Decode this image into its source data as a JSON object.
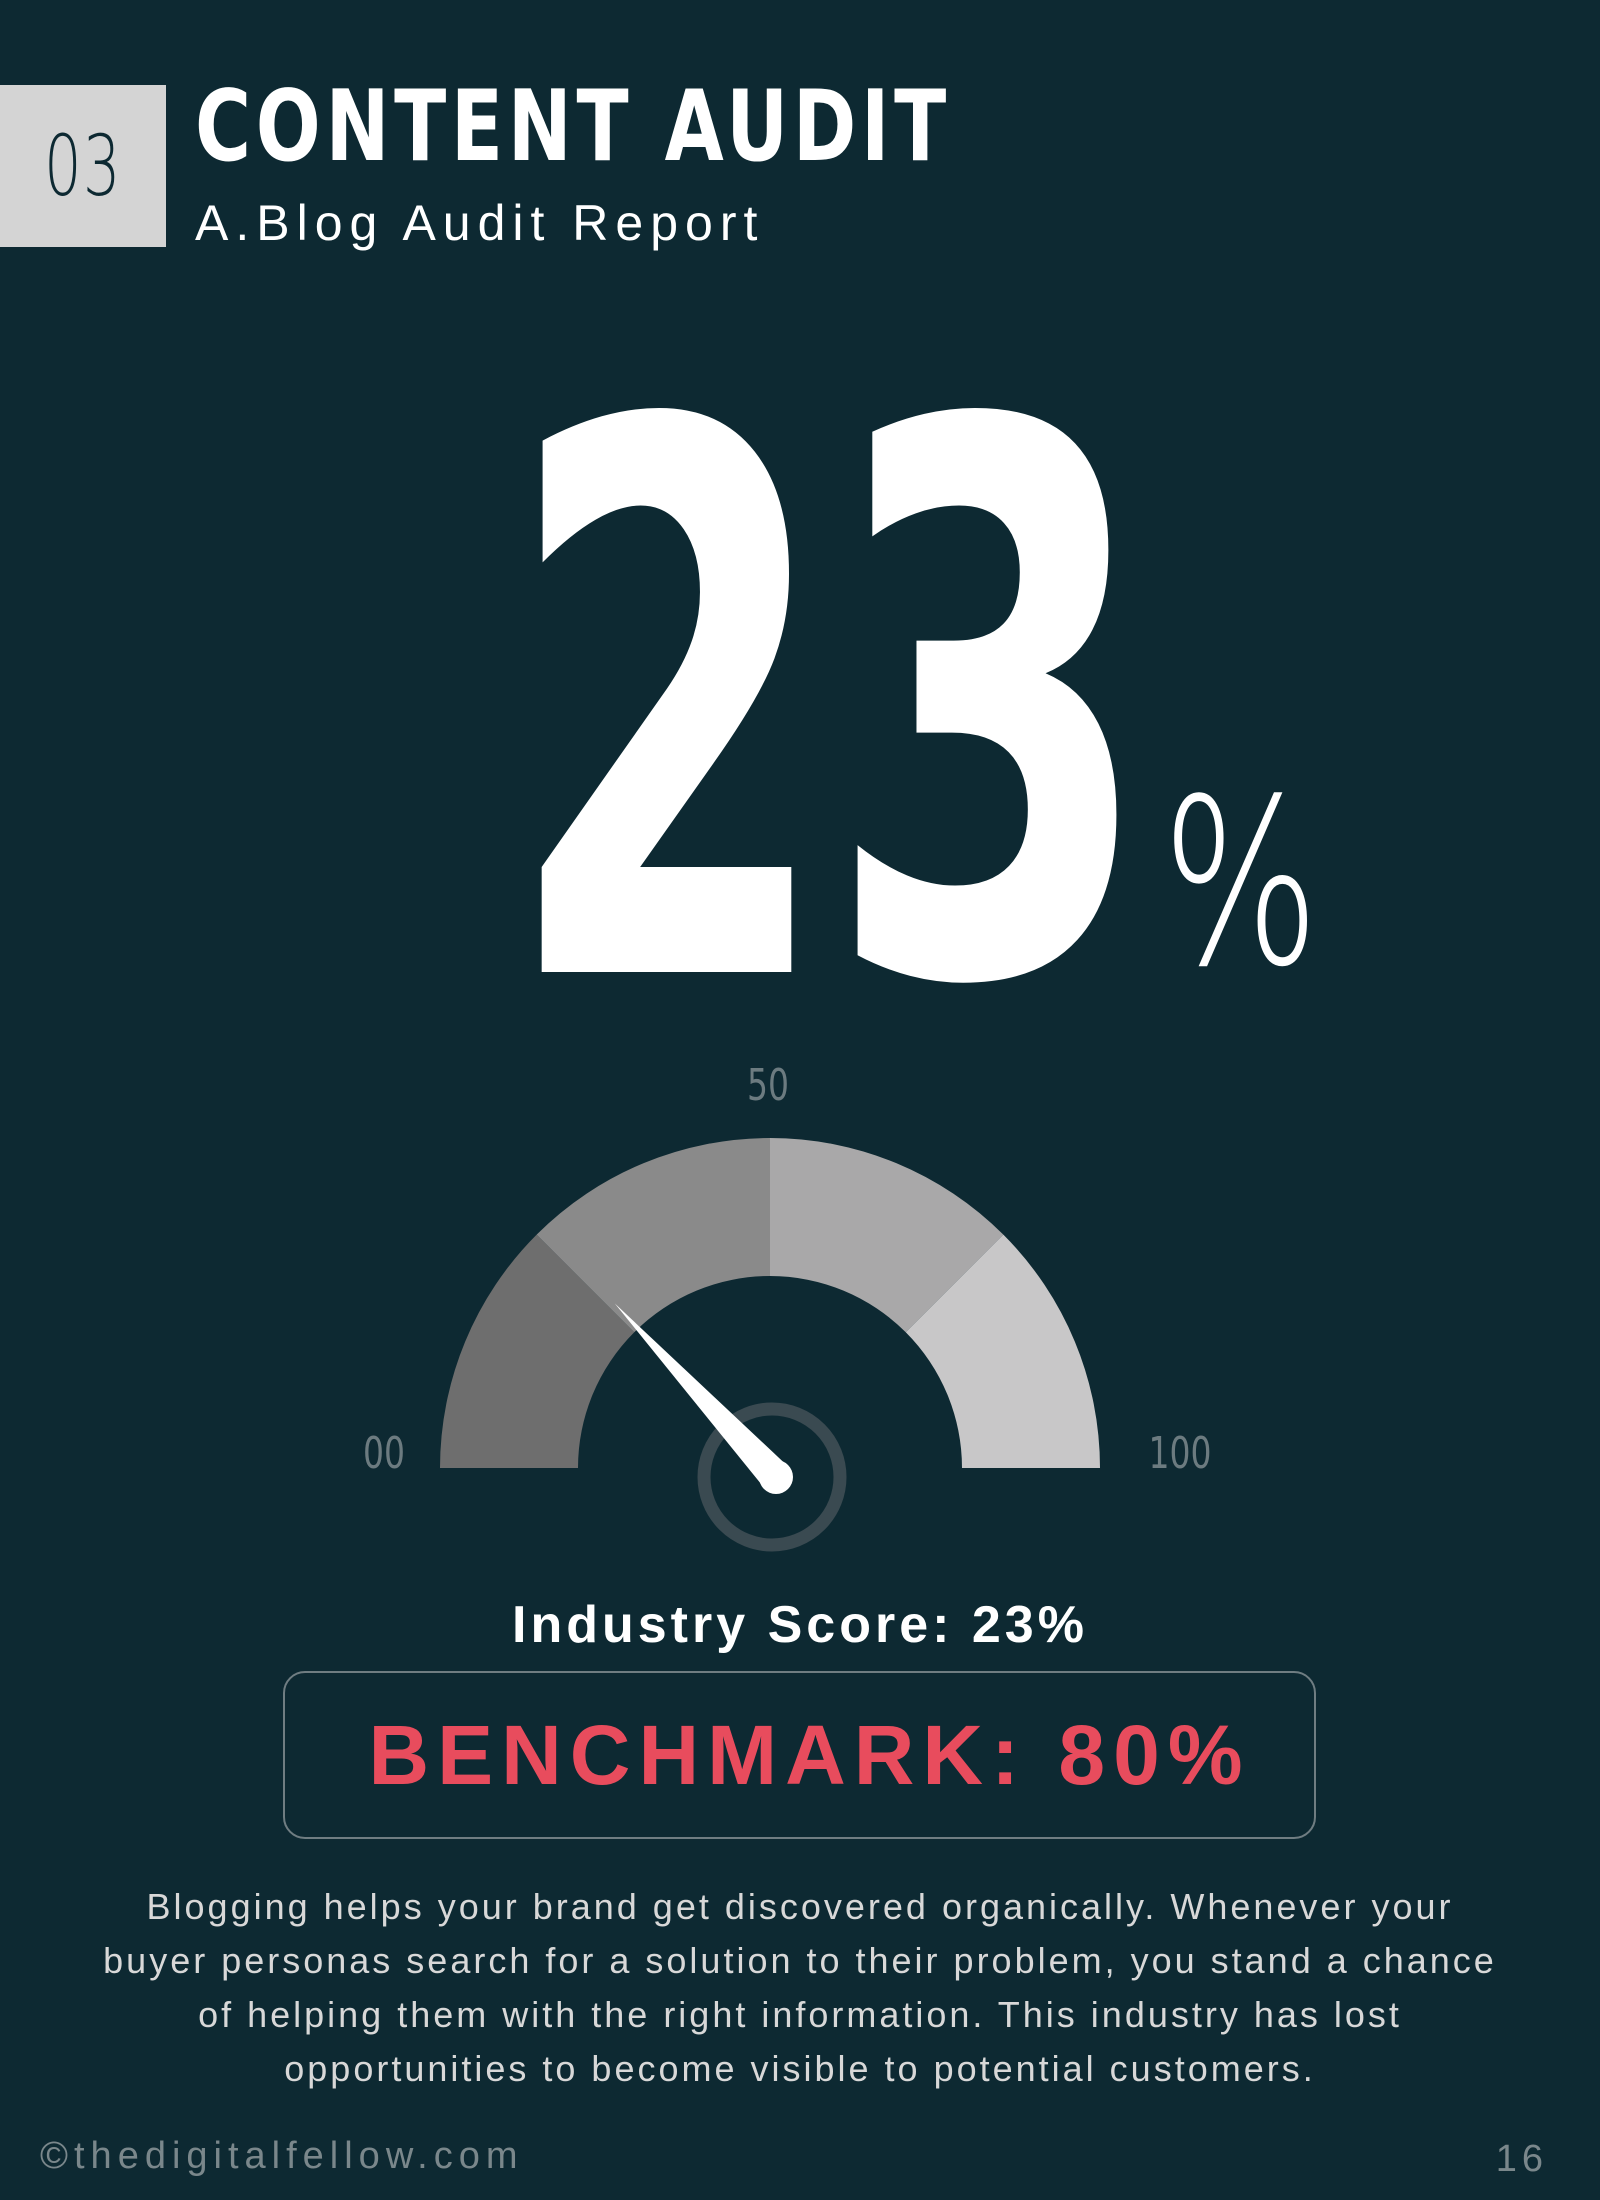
{
  "header": {
    "section_number": "03",
    "title": "CONTENT AUDIT",
    "subtitle": "A.Blog Audit  Report"
  },
  "stat": {
    "value": "23",
    "unit": "%"
  },
  "gauge": {
    "label_min": "00",
    "label_mid": "50",
    "label_max": "100",
    "min": 0,
    "max": 100,
    "needle_value": 23,
    "segment_colors": [
      "#6e6e6e",
      "#8a8a8a",
      "#a9a8a9",
      "#c8c7c8"
    ],
    "needle_color": "#ffffff",
    "hub_ring_color": "#3a4a51"
  },
  "industry_score": {
    "text": "Industry Score: 23%"
  },
  "benchmark": {
    "text": "BENCHMARK: 80%",
    "color": "#e84c5d"
  },
  "body": {
    "lines": [
      "Blogging helps your brand get discovered organically. Whenever your",
      "buyer personas search for a solution to their problem, you stand a chance",
      "of helping them with the right information. This industry has lost",
      "opportunities to become visible to potential customers."
    ]
  },
  "footer": {
    "copyright": "©thedigitalfellow.com",
    "page_number": "16"
  }
}
